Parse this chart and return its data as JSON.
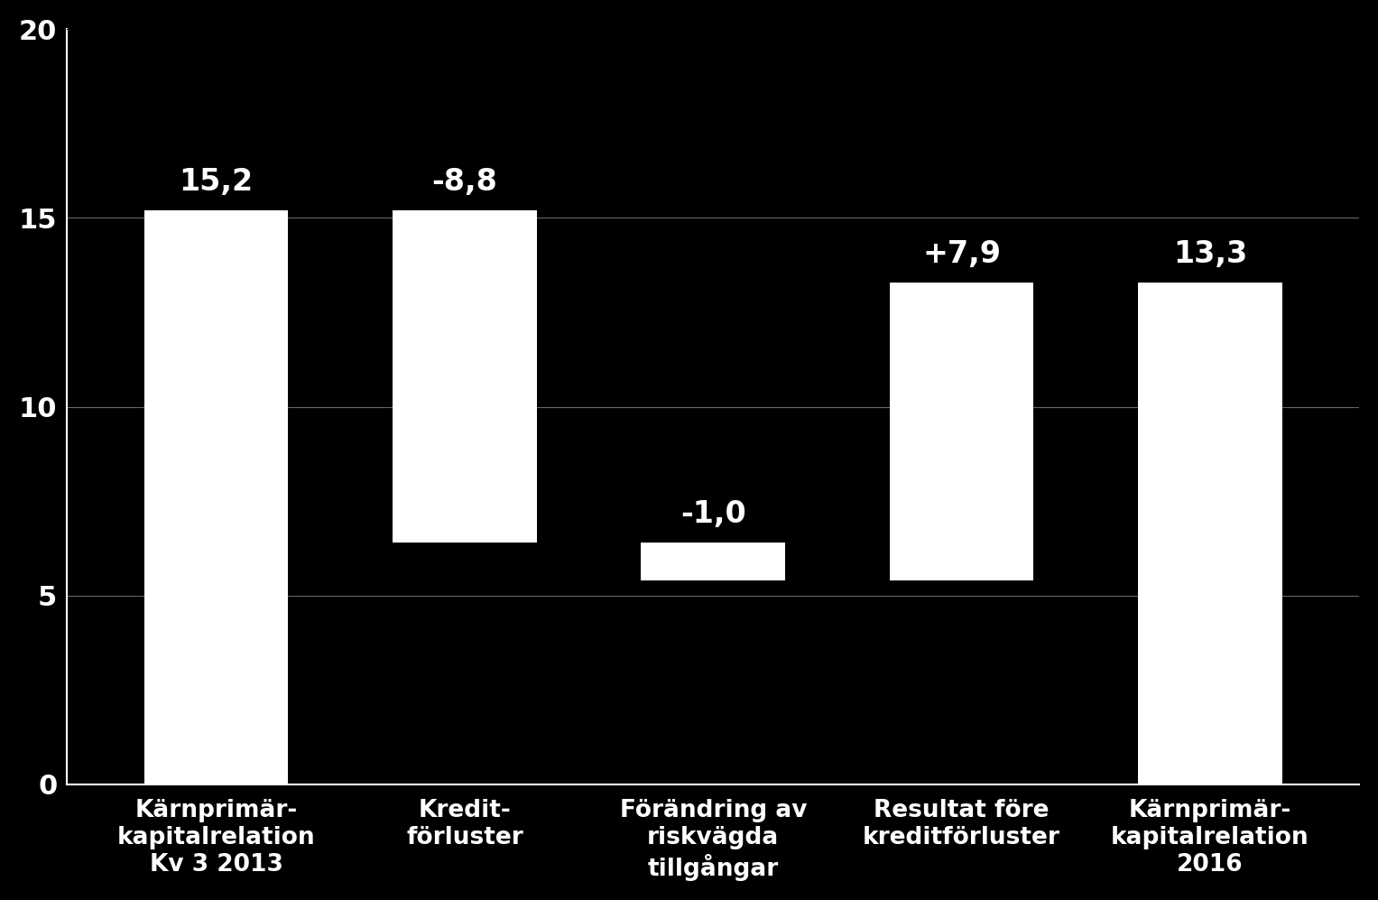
{
  "categories": [
    "Kärnprimär-\nkapitalrelation\nKv 3 2013",
    "Kredit-\nförluster",
    "Förändring av\nriskvägda\ntillgångar",
    "Resultat före\nkreditförluster",
    "Kärnprimär-\nkapitalrelation\n2016"
  ],
  "bar_bottoms": [
    0,
    6.4,
    5.4,
    5.4,
    0
  ],
  "bar_heights": [
    15.2,
    8.8,
    1.0,
    7.9,
    13.3
  ],
  "bar_colors": [
    "#ffffff",
    "#ffffff",
    "#ffffff",
    "#ffffff",
    "#ffffff"
  ],
  "labels": [
    "15,2",
    "-8,8",
    "-1,0",
    "+7,9",
    "13,3"
  ],
  "label_offsets": [
    0.35,
    0.35,
    0.35,
    0.35,
    0.35
  ],
  "ylim": [
    0,
    20
  ],
  "yticks": [
    0,
    5,
    10,
    15,
    20
  ],
  "background_color": "#000000",
  "text_color": "#ffffff",
  "grid_color": "#ffffff",
  "grid_alpha": 0.4,
  "grid_linewidth": 0.8,
  "label_fontsize": 24,
  "tick_fontsize": 22,
  "xlabel_fontsize": 19,
  "bar_width": 0.58,
  "spine_color": "#ffffff",
  "spine_linewidth": 1.5
}
